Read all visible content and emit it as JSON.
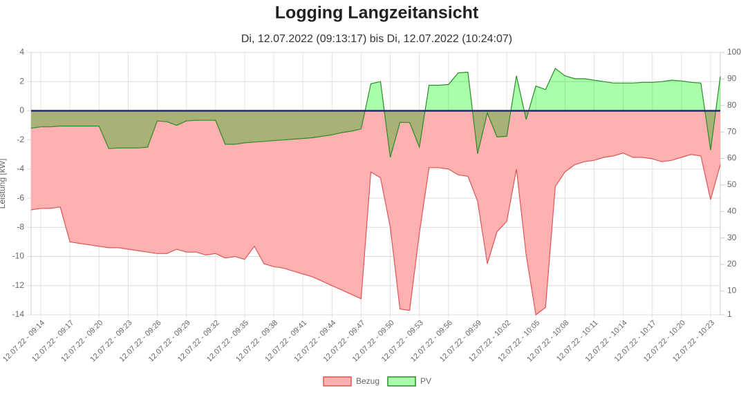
{
  "chart_data": {
    "type": "line",
    "title": "Logging Langzeitansicht",
    "subtitle": "Di, 12.07.2022 (09:13:17) bis Di, 12.07.2022 (10:24:07)",
    "y_label": "Leistung [kW]",
    "categories": [
      null,
      "12.07.22 - 09:14",
      null,
      null,
      "12.07.22 - 09:17",
      null,
      null,
      "12.07.22 - 09:20",
      null,
      null,
      "12.07.22 - 09:23",
      null,
      null,
      "12.07.22 - 09:26",
      null,
      null,
      "12.07.22 - 09:29",
      null,
      null,
      "12.07.22 - 09:32",
      null,
      null,
      "12.07.22 - 09:35",
      null,
      null,
      "12.07.22 - 09:38",
      null,
      null,
      "12.07.22 - 09:41",
      null,
      null,
      "12.07.22 - 09:44",
      null,
      null,
      "12.07.22 - 09:47",
      null,
      null,
      "12.07.22 - 09:50",
      null,
      null,
      "12.07.22 - 09:53",
      null,
      null,
      "12.07.22 - 09:56",
      null,
      null,
      "12.07.22 - 09:59",
      null,
      null,
      "12.07.22 - 10:02",
      null,
      null,
      "12.07.22 - 10:05",
      null,
      null,
      "12.07.22 - 10:08",
      null,
      null,
      "12.07.22 - 10:11",
      null,
      null,
      "12.07.22 - 10:14",
      null,
      null,
      "12.07.22 - 10:17",
      null,
      null,
      "12.07.22 - 10:20",
      null,
      null,
      "12.07.22 - 10:23",
      null
    ],
    "series": [
      {
        "name": "Bezug",
        "color": "#e05555",
        "fill": "#ffb1b1",
        "values": [
          -6.8,
          -6.7,
          -6.7,
          -6.6,
          -9.0,
          -9.1,
          -9.2,
          -9.3,
          -9.4,
          -9.4,
          -9.5,
          -9.6,
          -9.7,
          -9.8,
          -9.8,
          -9.5,
          -9.7,
          -9.7,
          -9.9,
          -9.8,
          -10.1,
          -10.0,
          -10.2,
          -9.3,
          -10.5,
          -10.7,
          -10.8,
          -11.0,
          -11.2,
          -11.4,
          -11.7,
          -12.0,
          -12.3,
          -12.6,
          -12.9,
          -4.2,
          -4.6,
          -8.0,
          -13.6,
          -13.7,
          -8.4,
          -3.9,
          -3.9,
          -4.0,
          -4.4,
          -4.5,
          -6.2,
          -10.5,
          -8.3,
          -7.6,
          -4.0,
          -9.9,
          -14.0,
          -13.5,
          -5.2,
          -4.2,
          -3.7,
          -3.5,
          -3.4,
          -3.2,
          -3.1,
          -2.9,
          -3.2,
          -3.2,
          -3.3,
          -3.5,
          -3.4,
          -3.2,
          -3.0,
          -3.1,
          -6.1,
          -3.7
        ]
      },
      {
        "name": "PV",
        "color": "#2a8a2a",
        "fill": "#aaffaa",
        "values": [
          -1.2,
          -1.1,
          -1.1,
          -1.05,
          -1.05,
          -1.05,
          -1.05,
          -1.05,
          -2.6,
          -2.55,
          -2.55,
          -2.55,
          -2.5,
          -0.7,
          -0.75,
          -1.0,
          -0.7,
          -0.65,
          -0.65,
          -0.65,
          -2.3,
          -2.3,
          -2.2,
          -2.15,
          -2.1,
          -2.05,
          -2.0,
          -1.95,
          -1.9,
          -1.85,
          -1.75,
          -1.65,
          -1.5,
          -1.4,
          -1.25,
          1.85,
          2.0,
          -3.2,
          -0.8,
          -0.8,
          -2.5,
          1.75,
          1.75,
          1.8,
          2.6,
          2.65,
          -2.95,
          -0.15,
          -1.8,
          -1.75,
          2.4,
          -0.6,
          1.7,
          1.45,
          2.9,
          2.4,
          2.2,
          2.2,
          2.1,
          2.0,
          1.9,
          1.9,
          1.9,
          1.95,
          1.95,
          2.0,
          2.1,
          2.05,
          1.95,
          1.9,
          -2.7,
          2.35
        ]
      }
    ],
    "ylim": [
      -14,
      4
    ],
    "yticks": [
      -14,
      -12,
      -10,
      -8,
      -6,
      -4,
      -2,
      0,
      2,
      4
    ],
    "y2lim": [
      1,
      100
    ],
    "y2ticks": [
      1,
      10,
      20,
      30,
      40,
      50,
      60,
      70,
      80,
      90,
      100
    ],
    "grid": true,
    "legend": "bottom"
  }
}
